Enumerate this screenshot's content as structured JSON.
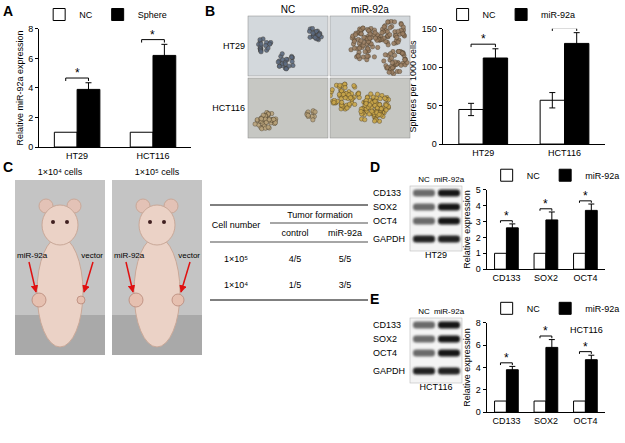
{
  "panel_labels": [
    "A",
    "B",
    "C",
    "D",
    "E"
  ],
  "chart_data": [
    {
      "type": "bar",
      "ylabel": "Relative miR-92a expression",
      "categories": [
        "HT29",
        "HCT116"
      ],
      "series": [
        {
          "name": "NC",
          "color": "#ffffff",
          "values": [
            1,
            1
          ]
        },
        {
          "name": "Sphere",
          "color": "#000000",
          "values": [
            3.9,
            6.2
          ],
          "error": [
            0.45,
            0.75
          ]
        }
      ],
      "ylim": [
        0,
        8
      ],
      "yticks": [
        0,
        2,
        4,
        6,
        8
      ],
      "grid": false,
      "legend": "upper left",
      "annotations": [
        {
          "category": "HT29",
          "text": "*"
        },
        {
          "category": "HCT116",
          "text": "*"
        }
      ]
    },
    {
      "type": "bar",
      "ylabel": "Spheres per 1000 cells",
      "categories": [
        "HT29",
        "HCT116"
      ],
      "series": [
        {
          "name": "NC",
          "color": "#ffffff",
          "values": [
            45,
            57
          ],
          "error": [
            8,
            10
          ]
        },
        {
          "name": "miR-92a",
          "color": "#000000",
          "values": [
            112,
            131
          ],
          "error": [
            12,
            14
          ]
        }
      ],
      "ylim": [
        0,
        150
      ],
      "yticks": [
        0,
        50,
        100,
        150
      ],
      "grid": false,
      "legend": "upper left",
      "annotations": [
        {
          "category": "HT29",
          "text": "*"
        },
        {
          "category": "HCT116",
          "text": "*"
        }
      ]
    },
    {
      "type": "bar",
      "ylabel": "Relative expression",
      "categories": [
        "CD133",
        "SOX2",
        "OCT4"
      ],
      "series": [
        {
          "name": "NC",
          "color": "#ffffff",
          "values": [
            1,
            1,
            1
          ]
        },
        {
          "name": "miR-92a",
          "color": "#000000",
          "values": [
            2.6,
            3.1,
            3.7
          ],
          "error": [
            0.25,
            0.5,
            0.4
          ]
        }
      ],
      "ylim": [
        0,
        5
      ],
      "yticks": [
        0,
        1,
        2,
        3,
        4,
        5
      ],
      "grid": false,
      "legend": "upper left",
      "annotations": [
        {
          "category": "CD133",
          "text": "*"
        },
        {
          "category": "SOX2",
          "text": "*"
        },
        {
          "category": "OCT4",
          "text": "*"
        }
      ]
    },
    {
      "type": "bar",
      "title": "HCT116",
      "ylabel": "Relative expression",
      "categories": [
        "CD133",
        "SOX2",
        "OCT4"
      ],
      "series": [
        {
          "name": "NC",
          "color": "#ffffff",
          "values": [
            1,
            1,
            1
          ]
        },
        {
          "name": "miR-92a",
          "color": "#000000",
          "values": [
            3.8,
            5.8,
            4.7
          ],
          "error": [
            0.3,
            0.7,
            0.4
          ]
        }
      ],
      "ylim": [
        0,
        8
      ],
      "yticks": [
        0,
        2,
        4,
        6,
        8
      ],
      "grid": false,
      "legend": "upper left",
      "annotations": [
        {
          "category": "CD133",
          "text": "*"
        },
        {
          "category": "SOX2",
          "text": "*"
        },
        {
          "category": "OCT4",
          "text": "*"
        }
      ]
    }
  ],
  "sphere_images": {
    "columns": [
      "NC",
      "miR-92a"
    ],
    "rows": [
      "HT29",
      "HCT116"
    ]
  },
  "xenograft": {
    "images": [
      "1×10⁴ cells",
      "1×10⁵ cells"
    ],
    "arrows": [
      "miR-92a",
      "vector"
    ],
    "table": {
      "header": [
        "Cell number",
        "Tumor formation"
      ],
      "subheader": [
        "control",
        "miR-92a"
      ],
      "rows": [
        [
          "1×10⁵",
          "4/5",
          "5/5"
        ],
        [
          "1×10⁴",
          "1/5",
          "3/5"
        ]
      ]
    }
  },
  "blots": [
    {
      "lanes": [
        "NC",
        "miR-92a"
      ],
      "proteins": [
        "CD133",
        "SOX2",
        "OCT4",
        "GAPDH"
      ],
      "cell_line": "HT29"
    },
    {
      "lanes": [
        "NC",
        "miR-92a"
      ],
      "proteins": [
        "CD133",
        "SOX2",
        "OCT4",
        "GAPDH"
      ],
      "cell_line": "HCT116"
    }
  ]
}
